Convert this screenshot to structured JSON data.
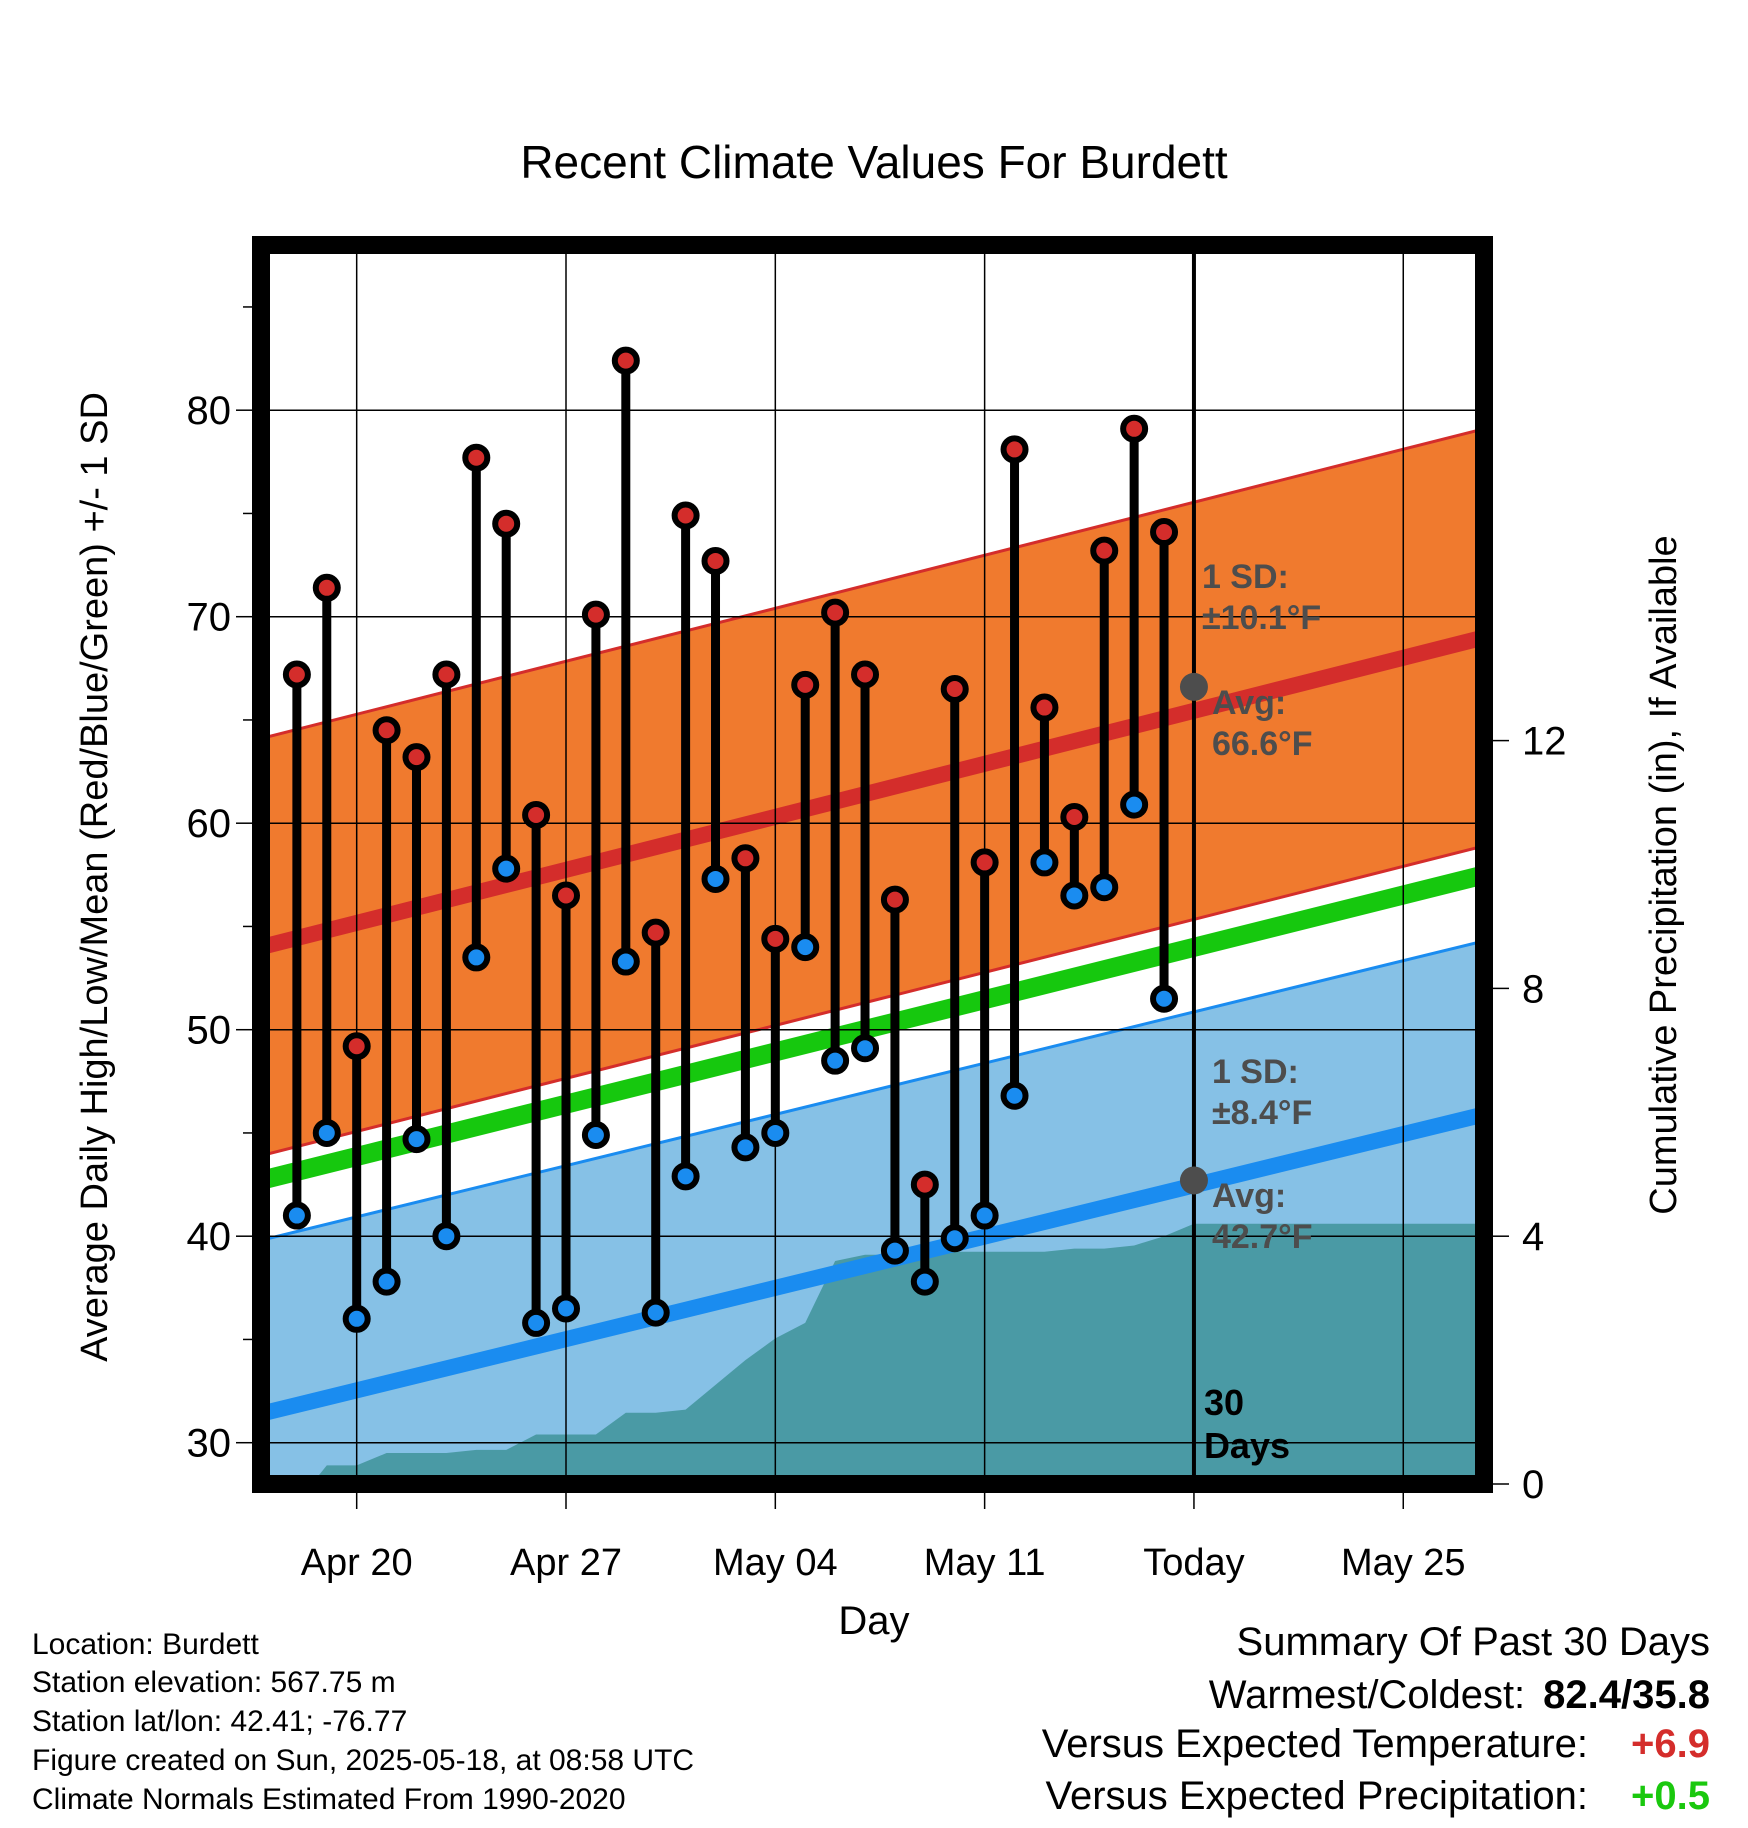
{
  "chart_data": {
    "type": "line",
    "title": "Recent Climate Values For Burdett",
    "xlabel": "Day",
    "ylabel": "Average Daily High/Low/Mean (Red/Blue/Green) +/- 1 SD",
    "y2label": "Cumulative Precipitation (in), If Available",
    "ylim": [
      28,
      88
    ],
    "y2lim": [
      0,
      20
    ],
    "yticks": [
      "30",
      "40",
      "50",
      "60",
      "70",
      "80"
    ],
    "y2ticks": [
      "0",
      "4",
      "8",
      "12"
    ],
    "xticks": [
      "Apr 20",
      "Apr 27",
      "May 04",
      "May 11",
      "Today",
      "May 25"
    ],
    "x_tick_days": [
      20,
      27,
      34,
      41,
      48,
      55
    ],
    "x_range": [
      16.8,
      57.7
    ],
    "today_day": 48,
    "today_label": [
      "30",
      "Days"
    ],
    "grid": true,
    "daily": {
      "days": [
        18,
        19,
        20,
        21,
        22,
        23,
        24,
        25,
        26,
        27,
        28,
        29,
        30,
        31,
        32,
        33,
        34,
        35,
        36,
        37,
        38,
        39,
        40,
        41,
        42,
        43,
        44,
        45,
        46,
        47
      ],
      "high": [
        67.2,
        71.4,
        49.2,
        64.5,
        63.2,
        67.2,
        77.7,
        74.5,
        60.4,
        56.5,
        70.1,
        82.4,
        54.7,
        74.9,
        72.7,
        58.3,
        54.4,
        66.7,
        70.2,
        67.2,
        56.3,
        42.5,
        66.5,
        58.1,
        78.1,
        65.6,
        60.3,
        73.2,
        79.1,
        74.1
      ],
      "low": [
        41.0,
        45.0,
        36.0,
        37.8,
        44.7,
        40.0,
        53.5,
        57.8,
        35.8,
        36.5,
        44.9,
        53.3,
        36.3,
        42.9,
        57.3,
        44.3,
        45.0,
        54.0,
        48.5,
        49.1,
        39.3,
        37.8,
        39.9,
        41.0,
        46.8,
        58.1,
        56.5,
        56.9,
        60.9,
        51.5
      ]
    },
    "normals": {
      "days": [
        16.8,
        57.7
      ],
      "high_avg": [
        54.0,
        69.0
      ],
      "high_sd": 10.1,
      "low_avg": [
        31.4,
        45.9
      ],
      "low_sd": 8.4,
      "mean_avg": [
        42.7,
        57.5
      ]
    },
    "precip": {
      "days": [
        16.8,
        18.5,
        19,
        20,
        21,
        22,
        23,
        24,
        25,
        26,
        27,
        28,
        29,
        30,
        31,
        32,
        33,
        34,
        35,
        36,
        37,
        38,
        39,
        40,
        41,
        42,
        43,
        44,
        45,
        46,
        47,
        48,
        57.7
      ],
      "values": [
        0,
        0,
        0.3,
        0.3,
        0.5,
        0.5,
        0.5,
        0.55,
        0.55,
        0.8,
        0.8,
        0.8,
        1.15,
        1.15,
        1.2,
        1.6,
        2.0,
        2.35,
        2.6,
        3.6,
        3.7,
        3.7,
        3.75,
        3.75,
        3.75,
        3.75,
        3.75,
        3.8,
        3.8,
        3.85,
        4.0,
        4.2,
        4.2
      ]
    },
    "annotations": {
      "high_sd_label": [
        "1 SD:",
        "±10.1°F"
      ],
      "high_avg_label": [
        "Avg:",
        "66.6°F"
      ],
      "high_avg_today": 66.6,
      "low_sd_label": [
        "1 SD:",
        "±8.4°F"
      ],
      "low_avg_label": [
        "Avg:",
        "42.7°F"
      ],
      "low_avg_today": 42.7
    },
    "colors": {
      "high_band": "#f07a2e",
      "high_line": "#d42d2b",
      "low_band": "#86c1e6",
      "low_line": "#1a8cf0",
      "mean_line": "#16c80e",
      "precip": "#4a9aa5",
      "high_marker": "#d42d2b",
      "low_marker": "#1a8cf0",
      "annotation": "#4d4d4d"
    }
  },
  "info": {
    "location": "Location: Burdett",
    "elevation": "Station elevation: 567.75 m",
    "latlon": "Station lat/lon: 42.41; -76.77",
    "created": "Figure created on Sun, 2025-05-18, at 08:58 UTC",
    "normals": "Climate Normals Estimated From 1990-2020"
  },
  "summary": {
    "heading": "Summary Of Past 30 Days",
    "warmest_label": "Warmest/Coldest:",
    "warmest_value": "82.4/35.8",
    "temp_label": "Versus Expected Temperature:",
    "temp_value": "+6.9",
    "temp_color": "#d42d2b",
    "precip_label": "Versus Expected Precipitation:",
    "precip_value": "+0.5",
    "precip_color": "#1ac80e"
  }
}
